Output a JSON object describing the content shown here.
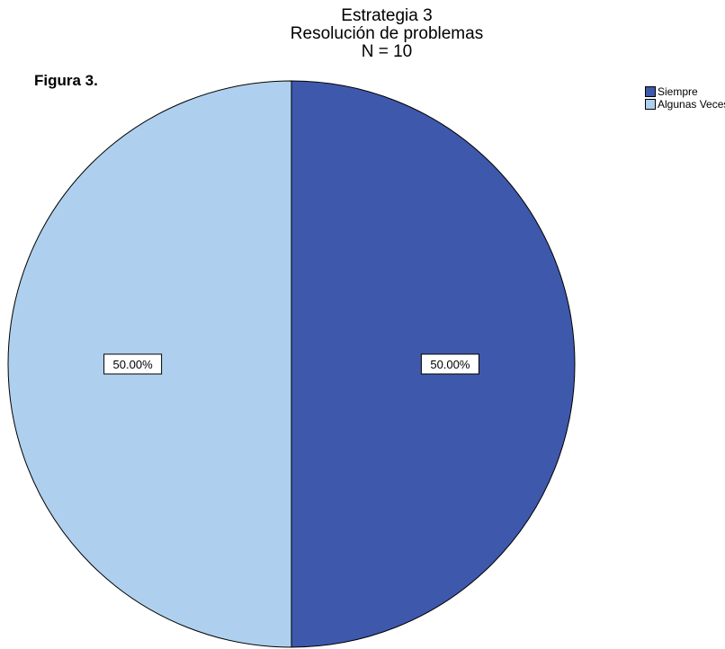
{
  "figure_label": "Figura 3.",
  "chart_data": {
    "type": "pie",
    "title": "Estrategia 3",
    "subtitle": "Resolución de problemas",
    "n_label": "N = 10",
    "slices": [
      {
        "name": "Siempre",
        "value": 50.0,
        "label": "50.00%",
        "color": "#3e58ab"
      },
      {
        "name": "Algunas Veces",
        "value": 50.0,
        "label": "50.00%",
        "color": "#aed0ee"
      }
    ],
    "legend_position": "top-right"
  }
}
